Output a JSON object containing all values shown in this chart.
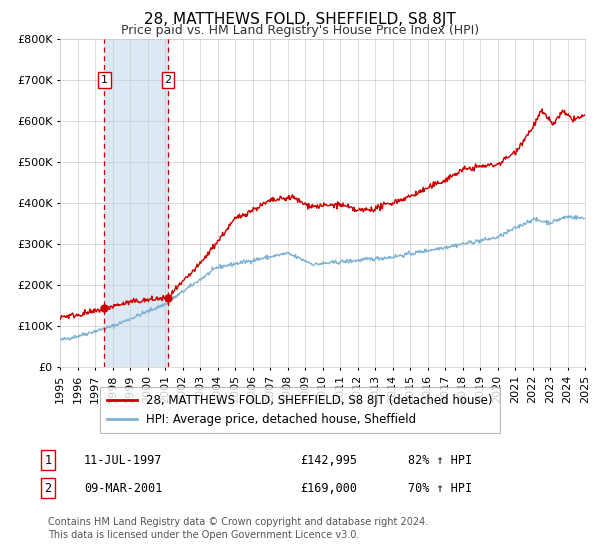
{
  "title": "28, MATTHEWS FOLD, SHEFFIELD, S8 8JT",
  "subtitle": "Price paid vs. HM Land Registry's House Price Index (HPI)",
  "legend_line1": "28, MATTHEWS FOLD, SHEFFIELD, S8 8JT (detached house)",
  "legend_line2": "HPI: Average price, detached house, Sheffield",
  "footnote1": "Contains HM Land Registry data © Crown copyright and database right 2024.",
  "footnote2": "This data is licensed under the Open Government Licence v3.0.",
  "sale1_label": "1",
  "sale1_date": "11-JUL-1997",
  "sale1_price": "£142,995",
  "sale1_hpi": "82% ↑ HPI",
  "sale2_label": "2",
  "sale2_date": "09-MAR-2001",
  "sale2_price": "£169,000",
  "sale2_hpi": "70% ↑ HPI",
  "sale1_year": 1997.53,
  "sale2_year": 2001.18,
  "sale1_value": 142995,
  "sale2_value": 169000,
  "red_color": "#cc0000",
  "blue_color": "#7fb3d3",
  "shaded_color": "#dce9f5",
  "background_color": "#ffffff",
  "grid_color": "#cccccc",
  "ylim_min": 0,
  "ylim_max": 800000,
  "xlim_min": 1995.0,
  "xlim_max": 2025.0,
  "title_fontsize": 11,
  "subtitle_fontsize": 9,
  "axis_fontsize": 8,
  "legend_fontsize": 8.5,
  "footnote_fontsize": 7.0
}
